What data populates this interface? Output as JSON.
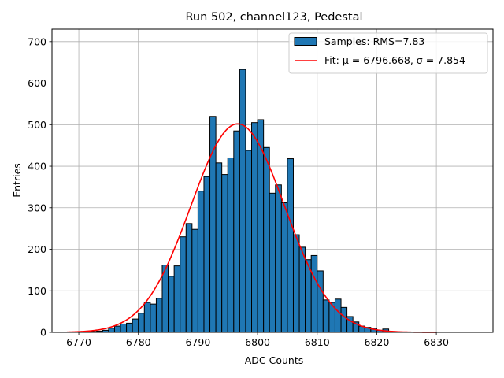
{
  "chart_data": {
    "type": "bar",
    "title": "Run 502, channel123, Pedestal",
    "xlabel": "ADC Counts",
    "ylabel": "Entries",
    "xlim": [
      6765.5,
      6839.5
    ],
    "ylim": [
      0,
      730
    ],
    "x_ticks": [
      6770,
      6780,
      6790,
      6800,
      6810,
      6820,
      6830
    ],
    "y_ticks": [
      0,
      100,
      200,
      300,
      400,
      500,
      600,
      700
    ],
    "grid": true,
    "legend_position": "top-right",
    "bin_width": 1,
    "bin_edges_start": 6772,
    "series": [
      {
        "name": "Samples: RMS=7.83",
        "kind": "histogram",
        "color": "#1f77b4",
        "edgecolor": "#000000",
        "values": [
          2,
          3,
          5,
          10,
          15,
          20,
          22,
          32,
          46,
          72,
          68,
          82,
          162,
          135,
          160,
          230,
          262,
          248,
          340,
          375,
          520,
          408,
          380,
          420,
          485,
          633,
          438,
          505,
          512,
          445,
          335,
          355,
          312,
          418,
          235,
          205,
          175,
          185,
          148,
          78,
          72,
          80,
          60,
          38,
          25,
          15,
          12,
          10,
          5,
          8,
          2
        ]
      },
      {
        "name": "Fit: μ = 6796.668, σ = 7.854",
        "kind": "gaussian",
        "color": "#ff0000",
        "mu": 6796.668,
        "sigma": 7.854,
        "amplitude": 502,
        "x_range": [
          6768,
          6830
        ]
      }
    ]
  }
}
